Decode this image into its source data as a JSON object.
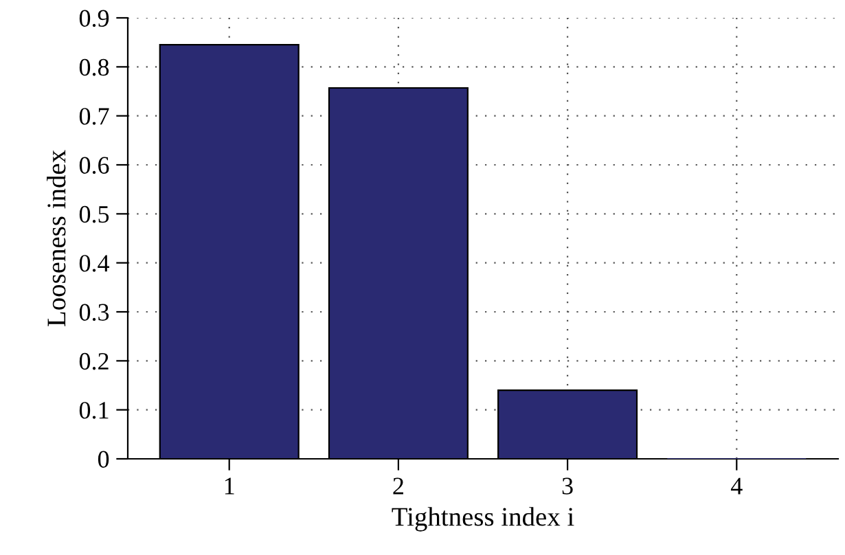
{
  "chart_data": {
    "type": "bar",
    "xlabel": "Tightness index i",
    "ylabel": "Looseness index",
    "categories": [
      "1",
      "2",
      "3",
      "4"
    ],
    "values": [
      0.845,
      0.757,
      0.14,
      0.0
    ],
    "color": "#2a2a72",
    "ylim": [
      0,
      0.9
    ],
    "yticks": [
      0,
      0.1,
      0.2,
      0.3,
      0.4,
      0.5,
      0.6,
      0.7,
      0.8,
      0.9
    ],
    "grid": true
  }
}
